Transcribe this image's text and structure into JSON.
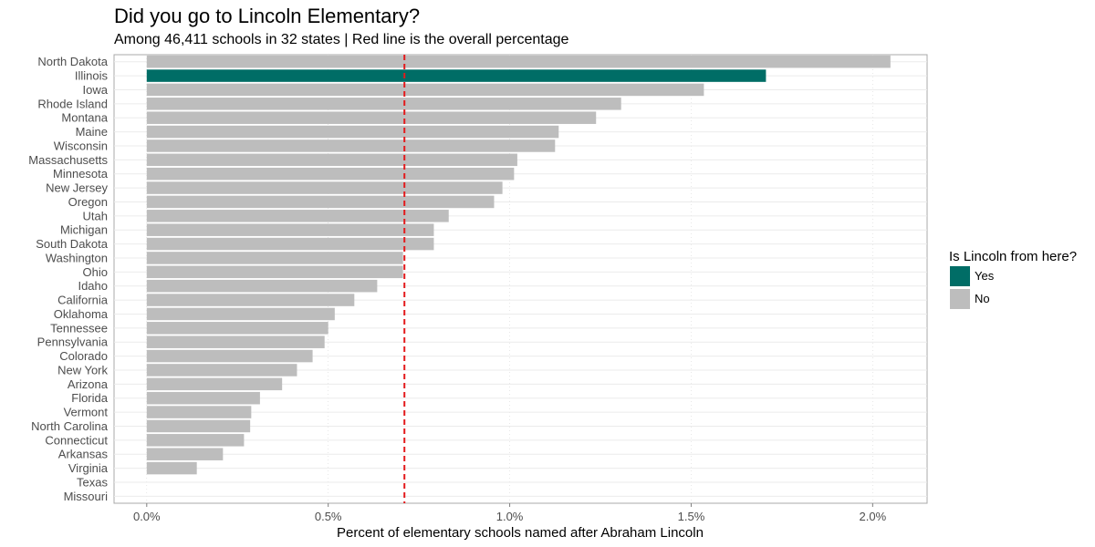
{
  "chart_data": {
    "type": "bar",
    "orientation": "horizontal",
    "title": "Did you go to Lincoln Elementary?",
    "subtitle": "Among 46,411 schools in 32 states | Red line is the overall percentage",
    "xlabel": "Percent of elementary schools named after Abraham Lincoln",
    "ylabel": "",
    "xlim": [
      -0.0009,
      0.0215
    ],
    "x_ticks": [
      0,
      0.005,
      0.01,
      0.015,
      0.02
    ],
    "x_tick_labels": [
      "0.0%",
      "0.5%",
      "1.0%",
      "1.5%",
      "2.0%"
    ],
    "reference_line": {
      "value": 0.0071,
      "color": "#e31a1c",
      "style": "dashed"
    },
    "grid": true,
    "categories": [
      "North Dakota",
      "Illinois",
      "Iowa",
      "Rhode Island",
      "Montana",
      "Maine",
      "Wisconsin",
      "Massachusetts",
      "Minnesota",
      "New Jersey",
      "Oregon",
      "Utah",
      "Michigan",
      "South Dakota",
      "Washington",
      "Ohio",
      "Idaho",
      "California",
      "Oklahoma",
      "Tennessee",
      "Pennsylvania",
      "Colorado",
      "New York",
      "Arizona",
      "Florida",
      "Vermont",
      "North Carolina",
      "Connecticut",
      "Arkansas",
      "Virginia",
      "Texas",
      "Missouri"
    ],
    "values": [
      0.02049,
      0.01706,
      0.01535,
      0.01307,
      0.01238,
      0.01135,
      0.01125,
      0.01021,
      0.01012,
      0.0098,
      0.00957,
      0.00832,
      0.00791,
      0.00791,
      0.00706,
      0.00706,
      0.00635,
      0.00572,
      0.00518,
      0.005,
      0.0049,
      0.00457,
      0.00414,
      0.00373,
      0.00312,
      0.00288,
      0.00285,
      0.00268,
      0.0021,
      0.00138,
      0,
      0
    ],
    "groups": [
      "No",
      "Yes",
      "No",
      "No",
      "No",
      "No",
      "No",
      "No",
      "No",
      "No",
      "No",
      "No",
      "No",
      "No",
      "No",
      "No",
      "No",
      "No",
      "No",
      "No",
      "No",
      "No",
      "No",
      "No",
      "No",
      "No",
      "No",
      "No",
      "No",
      "No",
      "No",
      "No"
    ],
    "legend": {
      "title": "Is Lincoln from here?",
      "position": "right",
      "items": [
        {
          "label": "Yes",
          "color": "#006d66"
        },
        {
          "label": "No",
          "color": "#bdbdbd"
        }
      ]
    }
  }
}
